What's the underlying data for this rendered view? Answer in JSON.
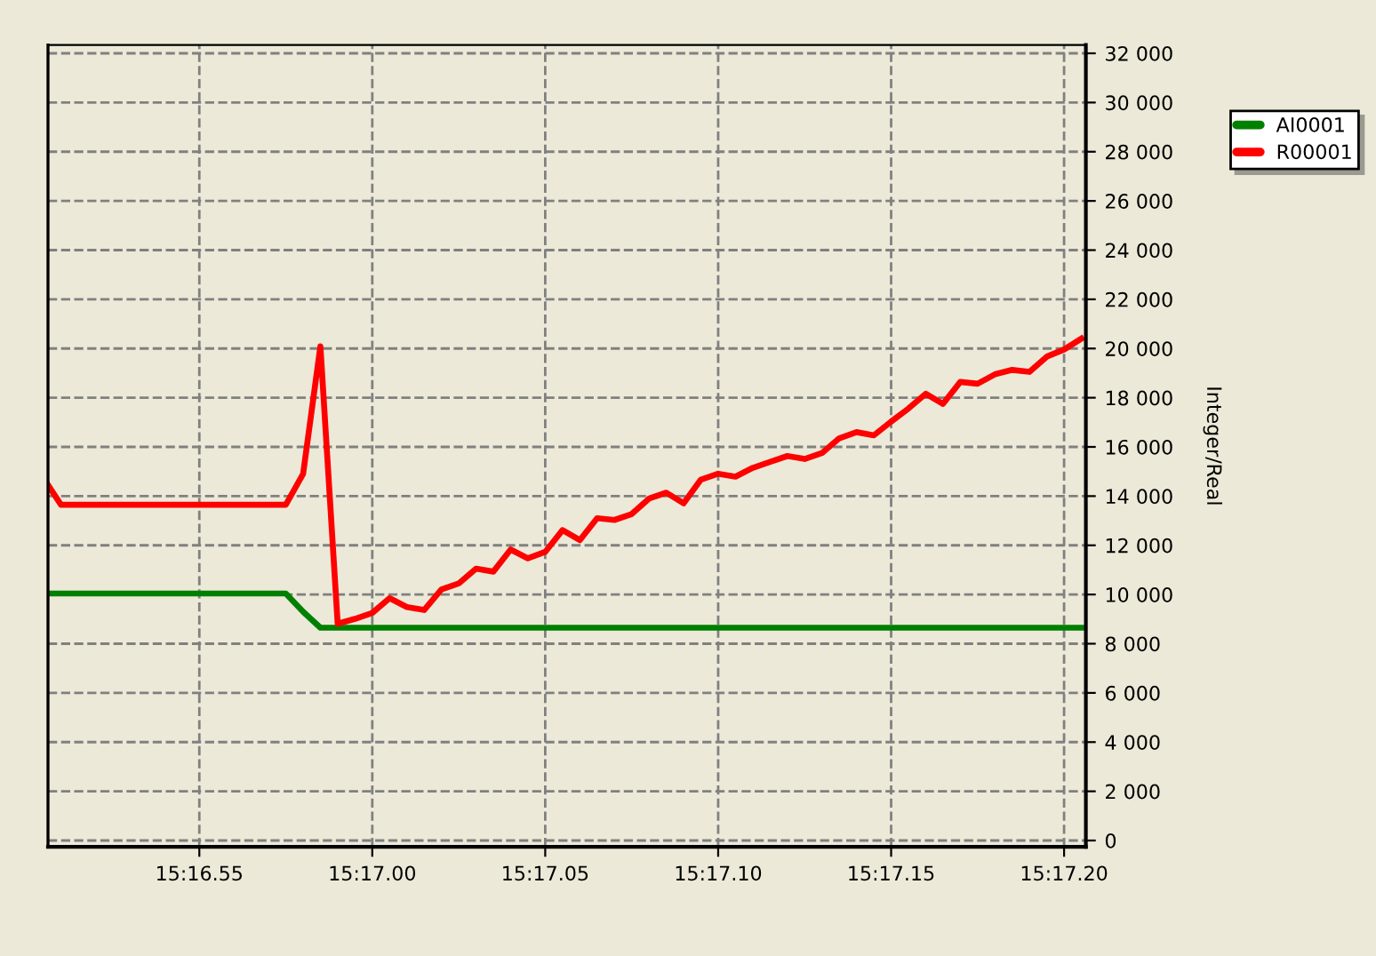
{
  "chart_data": {
    "type": "line",
    "ylabel": "Integer/Real",
    "legend": "top right",
    "grid": true,
    "line_style": "solid",
    "marker": "none",
    "categories": [
      null,
      null,
      null,
      null,
      null,
      null,
      null,
      null,
      null,
      "15:16.55",
      null,
      null,
      null,
      null,
      null,
      null,
      null,
      null,
      null,
      "15:17.00",
      null,
      null,
      null,
      null,
      null,
      null,
      null,
      null,
      null,
      "15:17.05",
      null,
      null,
      null,
      null,
      null,
      null,
      null,
      null,
      null,
      "15:17.10",
      null,
      null,
      null,
      null,
      null,
      null,
      null,
      null,
      null,
      "15:17.15",
      null,
      null,
      null,
      null,
      null,
      null,
      null,
      null,
      null,
      "15:17.20",
      null
    ],
    "ylim": [
      -260,
      32340
    ],
    "yticks": [
      0,
      {
        "value": 2000,
        "label": "2 000"
      },
      {
        "value": 4000,
        "label": "4 000"
      },
      {
        "value": 6000,
        "label": "6 000"
      },
      {
        "value": 8000,
        "label": "8 000"
      },
      {
        "value": 10000,
        "label": "10 000"
      },
      {
        "value": 12000,
        "label": "12 000"
      },
      {
        "value": 14000,
        "label": "14 000"
      },
      {
        "value": 16000,
        "label": "16 000"
      },
      {
        "value": 18000,
        "label": "18 000"
      },
      {
        "value": 20000,
        "label": "20 000"
      },
      {
        "value": 22000,
        "label": "22 000"
      },
      {
        "value": 24000,
        "label": "24 000"
      },
      {
        "value": 26000,
        "label": "26 000"
      },
      {
        "value": 28000,
        "label": "28 000"
      },
      {
        "value": 30000,
        "label": "30 000"
      },
      {
        "value": 32000,
        "label": "32 000"
      }
    ],
    "series": [
      {
        "name": "AI0001",
        "color": "#008000",
        "values": [
          10040,
          10040,
          10040,
          10040,
          10040,
          10040,
          10040,
          10040,
          10040,
          10040,
          10040,
          10040,
          10040,
          10040,
          10040,
          9300,
          8650,
          8650,
          8650,
          8650,
          8650,
          8650,
          8650,
          8650,
          8650,
          8650,
          8650,
          8650,
          8650,
          8650,
          8650,
          8650,
          8650,
          8650,
          8650,
          8650,
          8650,
          8650,
          8650,
          8650,
          8650,
          8650,
          8650,
          8650,
          8650,
          8650,
          8650,
          8650,
          8650,
          8650,
          8650,
          8650,
          8650,
          8650,
          8650,
          8650,
          8650,
          8650,
          8650,
          8650,
          8650
        ]
      },
      {
        "name": "R00001",
        "color": "#ff0000",
        "values": [
          14720,
          13650,
          13650,
          13650,
          13650,
          13650,
          13650,
          13650,
          13650,
          13650,
          13650,
          13650,
          13650,
          13650,
          13650,
          14900,
          20090,
          8810,
          9010,
          9250,
          9850,
          9490,
          9370,
          10210,
          10450,
          11050,
          10930,
          11830,
          11470,
          11730,
          12620,
          12210,
          13100,
          13030,
          13270,
          13900,
          14140,
          13710,
          14670,
          14910,
          14790,
          15150,
          15390,
          15630,
          15510,
          15750,
          16350,
          16600,
          16470,
          17030,
          17560,
          18160,
          17750,
          18640,
          18570,
          18950,
          19130,
          19050,
          19670,
          19960,
          20400
        ]
      }
    ]
  }
}
